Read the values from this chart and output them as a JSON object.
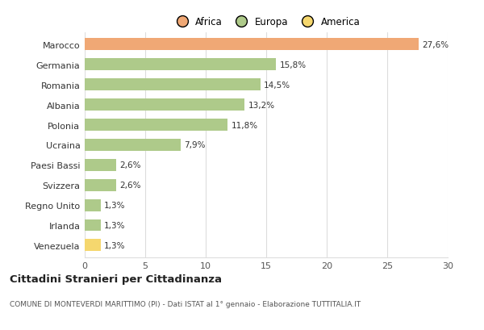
{
  "categories": [
    "Marocco",
    "Germania",
    "Romania",
    "Albania",
    "Polonia",
    "Ucraina",
    "Paesi Bassi",
    "Svizzera",
    "Regno Unito",
    "Irlanda",
    "Venezuela"
  ],
  "values": [
    27.6,
    15.8,
    14.5,
    13.2,
    11.8,
    7.9,
    2.6,
    2.6,
    1.3,
    1.3,
    1.3
  ],
  "labels": [
    "27,6%",
    "15,8%",
    "14,5%",
    "13,2%",
    "11,8%",
    "7,9%",
    "2,6%",
    "2,6%",
    "1,3%",
    "1,3%",
    "1,3%"
  ],
  "colors": [
    "#F0A875",
    "#AECA8A",
    "#AECA8A",
    "#AECA8A",
    "#AECA8A",
    "#AECA8A",
    "#AECA8A",
    "#AECA8A",
    "#AECA8A",
    "#AECA8A",
    "#F5D76E"
  ],
  "legend": [
    {
      "label": "Africa",
      "color": "#F0A875"
    },
    {
      "label": "Europa",
      "color": "#AECA8A"
    },
    {
      "label": "America",
      "color": "#F5D76E"
    }
  ],
  "title": "Cittadini Stranieri per Cittadinanza",
  "subtitle": "COMUNE DI MONTEVERDI MARITTIMO (PI) - Dati ISTAT al 1° gennaio - Elaborazione TUTTITALIA.IT",
  "xlim": [
    0,
    30
  ],
  "xticks": [
    0,
    5,
    10,
    15,
    20,
    25,
    30
  ],
  "background_color": "#ffffff",
  "grid_color": "#dddddd"
}
